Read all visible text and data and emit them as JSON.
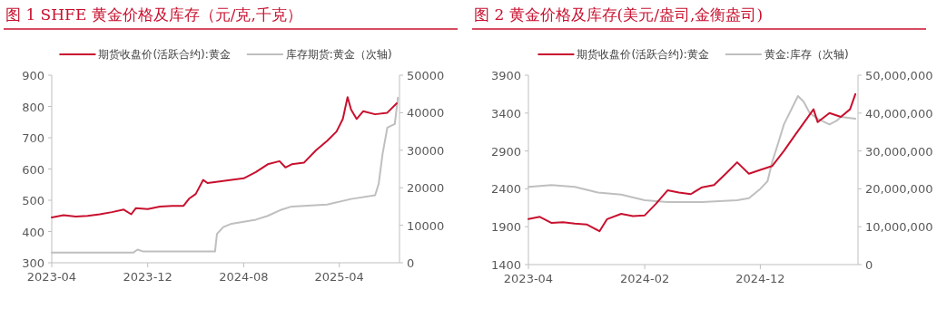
{
  "chart_data": [
    {
      "type": "line",
      "title": "图 1 SHFE 黄金价格及库存（元/克,千克）",
      "legend": "top",
      "xlim": [
        "2023-04",
        "2025-09"
      ],
      "xticks": [
        {
          "value": "2023-04",
          "label": "2023-04"
        },
        {
          "value": "2023-12",
          "label": "2023-12"
        },
        {
          "value": "2024-08",
          "label": "2024-08"
        },
        {
          "value": "2025-04",
          "label": "2025-04"
        }
      ],
      "ylim": [
        300,
        900
      ],
      "yticks": [
        300,
        400,
        500,
        600,
        700,
        800,
        900
      ],
      "y2lim": [
        0,
        50000
      ],
      "y2ticks": [
        0,
        10000,
        20000,
        30000,
        40000,
        50000
      ],
      "series": [
        {
          "name": "期货收盘价(活跃合约):黄金",
          "color": "#c8102e",
          "axis": "y",
          "x": [
            "2023-04-01",
            "2023-05-01",
            "2023-06-01",
            "2023-07-01",
            "2023-08-01",
            "2023-09-01",
            "2023-10-01",
            "2023-10-20",
            "2023-11-01",
            "2023-12-01",
            "2024-01-01",
            "2024-02-01",
            "2024-03-01",
            "2024-03-15",
            "2024-04-01",
            "2024-04-20",
            "2024-05-01",
            "2024-06-01",
            "2024-07-01",
            "2024-08-01",
            "2024-09-01",
            "2024-10-01",
            "2024-10-31",
            "2024-11-15",
            "2024-12-01",
            "2025-01-01",
            "2025-02-01",
            "2025-03-01",
            "2025-03-25",
            "2025-04-10",
            "2025-04-22",
            "2025-05-01",
            "2025-05-15",
            "2025-06-01",
            "2025-07-01",
            "2025-08-01",
            "2025-08-25"
          ],
          "values": [
            445,
            452,
            448,
            450,
            455,
            462,
            470,
            455,
            475,
            472,
            480,
            482,
            482,
            505,
            520,
            565,
            555,
            560,
            565,
            570,
            590,
            615,
            625,
            605,
            615,
            620,
            660,
            690,
            720,
            760,
            830,
            790,
            760,
            785,
            775,
            780,
            810
          ]
        },
        {
          "name": "库存期货:黄金（次轴)",
          "color": "#bfbfbf",
          "axis": "y2",
          "x": [
            "2023-04-01",
            "2023-10-25",
            "2023-11-05",
            "2023-11-20",
            "2024-05-20",
            "2024-05-25",
            "2024-06-10",
            "2024-07-01",
            "2024-09-01",
            "2024-10-01",
            "2024-11-01",
            "2024-12-01",
            "2025-03-01",
            "2025-05-01",
            "2025-07-01",
            "2025-07-10",
            "2025-07-20",
            "2025-08-01",
            "2025-08-20",
            "2025-08-28"
          ],
          "values": [
            2700,
            2700,
            3500,
            3000,
            3000,
            7700,
            9500,
            10400,
            11500,
            12500,
            14000,
            15000,
            15500,
            17000,
            18000,
            21000,
            29000,
            36000,
            37000,
            44000
          ]
        }
      ]
    },
    {
      "type": "line",
      "title": "图 2 黄金价格及库存(美元/盎司,金衡盎司)",
      "legend": "top",
      "xlim": [
        "2023-04",
        "2025-08-15"
      ],
      "xticks": [
        {
          "value": "2023-04",
          "label": "2023-04"
        },
        {
          "value": "2024-02",
          "label": "2024-02"
        },
        {
          "value": "2024-12",
          "label": "2024-12"
        }
      ],
      "ylim": [
        1400,
        3900
      ],
      "yticks": [
        1400,
        1900,
        2400,
        2900,
        3400,
        3900
      ],
      "y2lim": [
        0,
        50000000
      ],
      "y2ticks": [
        0,
        {
          "value": 10000000,
          "label": "10,000,000"
        },
        {
          "value": 20000000,
          "label": "20,000,000"
        },
        {
          "value": 30000000,
          "label": "30,000,000"
        },
        {
          "value": 40000000,
          "label": "40,000,000"
        },
        {
          "value": 50000000,
          "label": "50,000,000"
        }
      ],
      "series": [
        {
          "name": "期货收盘价(活跃合约):黄金",
          "color": "#c8102e",
          "axis": "y",
          "x": [
            "2023-04-01",
            "2023-05-01",
            "2023-06-01",
            "2023-07-01",
            "2023-08-01",
            "2023-09-01",
            "2023-10-05",
            "2023-10-25",
            "2023-12-01",
            "2024-01-01",
            "2024-02-01",
            "2024-03-01",
            "2024-04-01",
            "2024-05-01",
            "2024-06-01",
            "2024-07-01",
            "2024-08-01",
            "2024-09-01",
            "2024-10-01",
            "2024-11-01",
            "2024-12-01",
            "2025-01-01",
            "2025-02-01",
            "2025-03-01",
            "2025-04-20",
            "2025-05-01",
            "2025-06-01",
            "2025-07-01",
            "2025-07-25",
            "2025-08-08"
          ],
          "values": [
            2000,
            2030,
            1950,
            1960,
            1940,
            1930,
            1840,
            2000,
            2070,
            2040,
            2050,
            2200,
            2380,
            2350,
            2330,
            2420,
            2450,
            2600,
            2750,
            2600,
            2650,
            2700,
            2900,
            3100,
            3450,
            3280,
            3400,
            3350,
            3450,
            3650
          ]
        },
        {
          "name": "黄金:库存（次轴)",
          "color": "#bfbfbf",
          "axis": "y2",
          "x": [
            "2023-04-01",
            "2023-06-01",
            "2023-08-01",
            "2023-10-01",
            "2023-12-01",
            "2024-02-01",
            "2024-04-01",
            "2024-07-01",
            "2024-10-01",
            "2024-11-01",
            "2024-12-01",
            "2024-12-20",
            "2025-01-01",
            "2025-01-20",
            "2025-02-01",
            "2025-03-10",
            "2025-03-25",
            "2025-04-10",
            "2025-05-01",
            "2025-06-01",
            "2025-06-20",
            "2025-07-01",
            "2025-08-08"
          ],
          "values": [
            20500000,
            21000000,
            20500000,
            19000000,
            18500000,
            17000000,
            16500000,
            16500000,
            17000000,
            17500000,
            20000000,
            22000000,
            27000000,
            33000000,
            37000000,
            44500000,
            43000000,
            40000000,
            38500000,
            37000000,
            38000000,
            39000000,
            38500000
          ]
        }
      ]
    }
  ]
}
